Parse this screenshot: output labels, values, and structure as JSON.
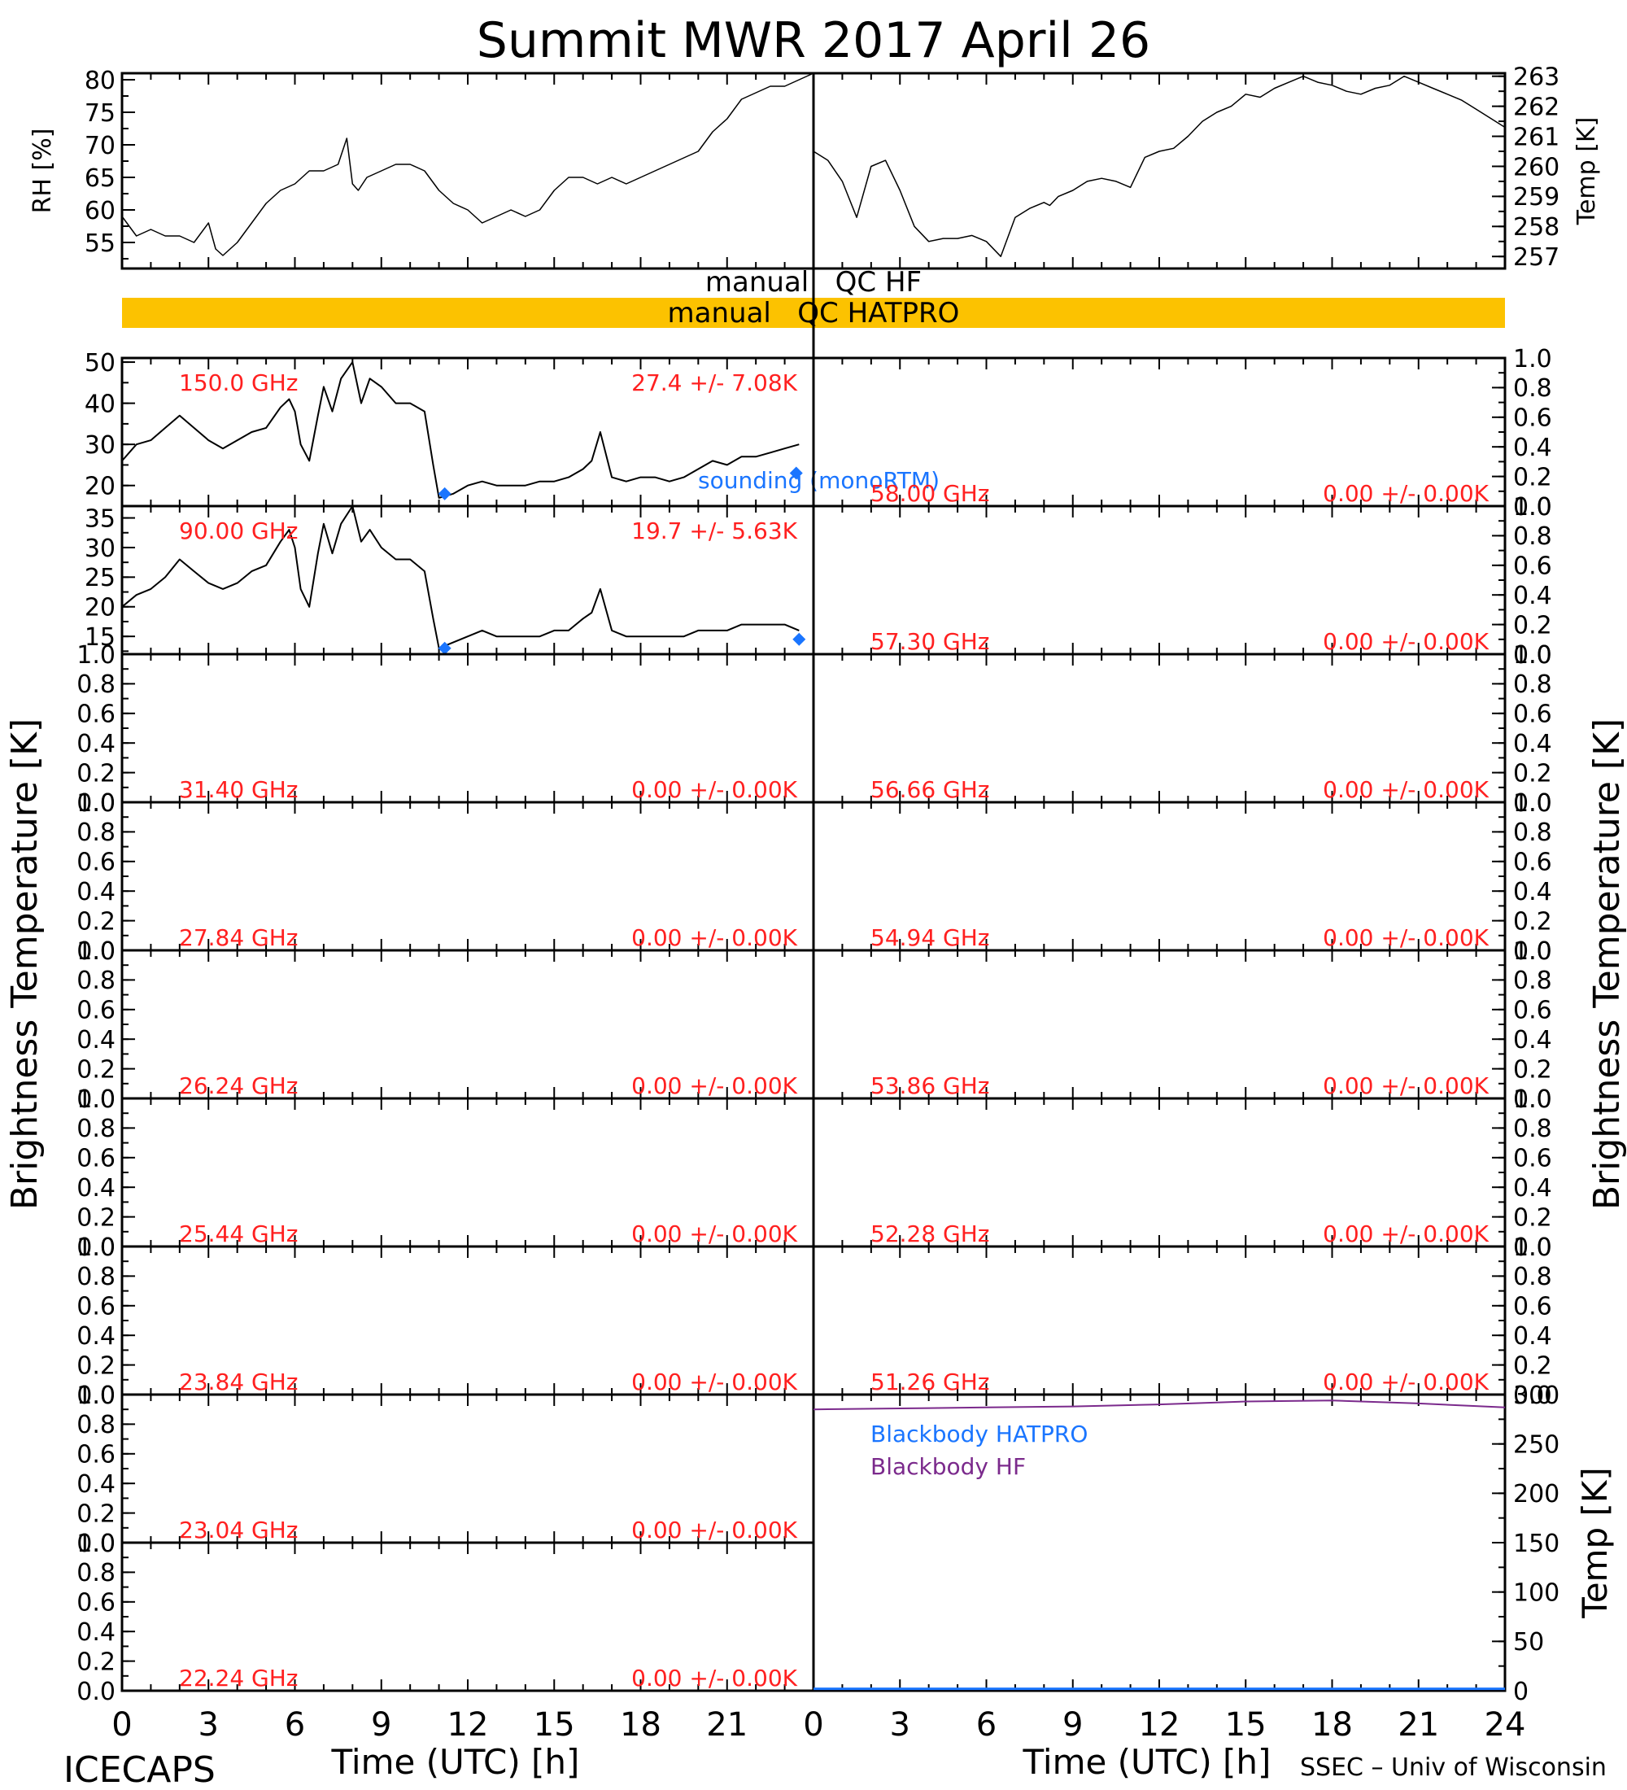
{
  "title": "Summit MWR 2017 April 26",
  "footer": {
    "left_credit": "ICECAPS",
    "right_credit": "SSEC – Univ of Wisconsin",
    "xlabel": "Time (UTC) [h]"
  },
  "colors": {
    "axis": "#000000",
    "channel_label": "#ff2020",
    "sounding": "#1a75ff",
    "blackbody_hatpro": "#1a75ff",
    "blackbody_hf": "#7b2a8c",
    "qc_bar": "#fcc200"
  },
  "qc": {
    "hf_label": "manual   QC HF",
    "hatpro_label": "manual   QC HATPRO",
    "hatpro_bar_on": true
  },
  "side_labels": {
    "brightness_left": "Brightness Temperature [K]",
    "brightness_right": "Brightness Temperature [K]",
    "sounding": "sounding (monoRTM)",
    "blackbody_hatpro": "Blackbody HATPRO",
    "blackbody_hf": "Blackbody HF"
  },
  "x_ticks": [
    "0",
    "3",
    "6",
    "9",
    "12",
    "15",
    "18",
    "21",
    "24"
  ],
  "x_ticks_left": [
    "0",
    "3",
    "6",
    "9",
    "12",
    "15",
    "18",
    "21"
  ],
  "chart_data": [
    {
      "id": "rh",
      "type": "line",
      "ylabel": "RH [%]",
      "xlim": [
        0,
        24
      ],
      "ylim": [
        51,
        81
      ],
      "yticks": [
        "55",
        "60",
        "65",
        "70",
        "75",
        "80"
      ],
      "x": [
        0,
        0.5,
        1,
        1.5,
        2,
        2.5,
        3,
        3.25,
        3.5,
        4,
        4.5,
        5,
        5.5,
        6,
        6.5,
        7,
        7.5,
        7.8,
        8,
        8.2,
        8.5,
        9,
        9.5,
        10,
        10.5,
        11,
        11.5,
        12,
        12.5,
        13,
        13.5,
        14,
        14.5,
        15,
        15.5,
        16,
        16.5,
        17,
        17.5,
        18,
        18.5,
        19,
        19.5,
        20,
        20.5,
        21,
        21.5,
        22,
        22.5,
        23,
        23.5,
        24
      ],
      "y": [
        59,
        56,
        57,
        56,
        56,
        55,
        58,
        54,
        53,
        55,
        58,
        61,
        63,
        64,
        66,
        66,
        67,
        71,
        64,
        63,
        65,
        66,
        67,
        67,
        66,
        63,
        61,
        60,
        58,
        59,
        60,
        59,
        60,
        63,
        65,
        65,
        64,
        65,
        64,
        65,
        66,
        67,
        68,
        69,
        72,
        74,
        77,
        78,
        79,
        79,
        80,
        81
      ]
    },
    {
      "id": "temp",
      "type": "line",
      "ylabel": "Temp [K]",
      "xlim": [
        0,
        24
      ],
      "ylim": [
        256.6,
        263.1
      ],
      "yticks": [
        "257",
        "258",
        "259",
        "260",
        "261",
        "262",
        "263"
      ],
      "x": [
        0,
        0.5,
        1,
        1.5,
        2,
        2.5,
        3,
        3.5,
        4,
        4.5,
        5,
        5.5,
        6,
        6.5,
        7,
        7.5,
        8,
        8.2,
        8.5,
        9,
        9.5,
        10,
        10.5,
        11,
        11.5,
        12,
        12.5,
        13,
        13.5,
        14,
        14.5,
        15,
        15.5,
        16,
        16.5,
        17,
        17.5,
        18,
        18.5,
        19,
        19.5,
        20,
        20.5,
        21,
        21.5,
        22,
        22.5,
        23,
        23.5,
        24
      ],
      "y": [
        260.5,
        260.2,
        259.5,
        258.3,
        260.0,
        260.2,
        259.2,
        258.0,
        257.5,
        257.6,
        257.6,
        257.7,
        257.5,
        257.0,
        258.3,
        258.6,
        258.8,
        258.7,
        259.0,
        259.2,
        259.5,
        259.6,
        259.5,
        259.3,
        260.3,
        260.5,
        260.6,
        261.0,
        261.5,
        261.8,
        262.0,
        262.4,
        262.3,
        262.6,
        262.8,
        263.0,
        262.8,
        262.7,
        262.5,
        262.4,
        262.6,
        262.7,
        263.0,
        262.8,
        262.6,
        262.4,
        262.2,
        261.9,
        261.6,
        261.3
      ]
    },
    {
      "id": "tb150",
      "type": "line",
      "channel_label": "150.0 GHz",
      "stats_label": "27.4 +/-  7.08K",
      "xlim": [
        0,
        24
      ],
      "ylim": [
        15,
        51
      ],
      "yticks": [
        "20",
        "30",
        "40",
        "50"
      ],
      "x": [
        0,
        0.5,
        1,
        1.5,
        2,
        2.5,
        3,
        3.5,
        4,
        4.5,
        5,
        5.5,
        5.8,
        6,
        6.2,
        6.5,
        6.8,
        7,
        7.3,
        7.6,
        8,
        8.3,
        8.6,
        9,
        9.5,
        10,
        10.5,
        10.8,
        11,
        11.5,
        12,
        12.5,
        13,
        13.5,
        14,
        14.5,
        15,
        15.5,
        16,
        16.3,
        16.6,
        17,
        17.5,
        18,
        18.5,
        19,
        19.5,
        20,
        20.5,
        21,
        21.5,
        22,
        22.5,
        23,
        23.5
      ],
      "y": [
        26,
        30,
        31,
        34,
        37,
        34,
        31,
        29,
        31,
        33,
        34,
        39,
        41,
        38,
        30,
        26,
        37,
        44,
        38,
        46,
        50,
        40,
        46,
        44,
        40,
        40,
        38,
        25,
        17,
        18,
        20,
        21,
        20,
        20,
        20,
        21,
        21,
        22,
        24,
        26,
        33,
        22,
        21,
        22,
        22,
        21,
        22,
        24,
        26,
        25,
        27,
        27,
        28,
        29,
        30
      ],
      "sounding": {
        "x": [
          11.2,
          23.4
        ],
        "y": [
          18,
          23
        ]
      }
    },
    {
      "id": "tb90",
      "type": "line",
      "channel_label": "90.00 GHz",
      "stats_label": "19.7 +/-  5.63K",
      "xlim": [
        0,
        24
      ],
      "ylim": [
        12,
        37
      ],
      "yticks": [
        "15",
        "20",
        "25",
        "30",
        "35"
      ],
      "x": [
        0,
        0.5,
        1,
        1.5,
        2,
        2.5,
        3,
        3.5,
        4,
        4.5,
        5,
        5.5,
        5.8,
        6,
        6.2,
        6.5,
        6.8,
        7,
        7.3,
        7.6,
        8,
        8.3,
        8.6,
        9,
        9.5,
        10,
        10.5,
        10.8,
        11,
        11.5,
        12,
        12.5,
        13,
        13.5,
        14,
        14.5,
        15,
        15.5,
        16,
        16.3,
        16.6,
        17,
        17.5,
        18,
        18.5,
        19,
        19.5,
        20,
        20.5,
        21,
        21.5,
        22,
        22.5,
        23,
        23.5
      ],
      "y": [
        20,
        22,
        23,
        25,
        28,
        26,
        24,
        23,
        24,
        26,
        27,
        31,
        33,
        30,
        23,
        20,
        29,
        34,
        29,
        34,
        37,
        31,
        33,
        30,
        28,
        28,
        26,
        18,
        13,
        14,
        15,
        16,
        15,
        15,
        15,
        15,
        16,
        16,
        18,
        19,
        23,
        16,
        15,
        15,
        15,
        15,
        15,
        16,
        16,
        16,
        17,
        17,
        17,
        17,
        16
      ],
      "sounding": {
        "x": [
          11.2,
          23.5
        ],
        "y": [
          13,
          14.5
        ]
      }
    },
    {
      "id": "blackbody",
      "type": "line",
      "ylabel": "Temp [K]",
      "xlim": [
        0,
        24
      ],
      "ylim": [
        0,
        300
      ],
      "yticks": [
        "0",
        "50",
        "100",
        "150",
        "200",
        "250",
        "300"
      ],
      "series": [
        {
          "name": "Blackbody HATPRO",
          "x": [
            0,
            24
          ],
          "y": [
            2,
            2
          ]
        },
        {
          "name": "Blackbody HF",
          "x": [
            0,
            3,
            6,
            9,
            12,
            15,
            18,
            21,
            24
          ],
          "y": [
            285,
            286,
            287,
            288,
            290,
            293,
            294,
            291,
            287
          ]
        }
      ]
    }
  ],
  "empty_panels": {
    "left": [
      {
        "channel_label": "31.40 GHz",
        "stats_label": "0.00 +/-  0.00K"
      },
      {
        "channel_label": "27.84 GHz",
        "stats_label": "0.00 +/-  0.00K"
      },
      {
        "channel_label": "26.24 GHz",
        "stats_label": "0.00 +/-  0.00K"
      },
      {
        "channel_label": "25.44 GHz",
        "stats_label": "0.00 +/-  0.00K"
      },
      {
        "channel_label": "23.84 GHz",
        "stats_label": "0.00 +/-  0.00K"
      },
      {
        "channel_label": "23.04 GHz",
        "stats_label": "0.00 +/-  0.00K"
      },
      {
        "channel_label": "22.24 GHz",
        "stats_label": "0.00 +/-  0.00K"
      }
    ],
    "right": [
      {
        "channel_label": "58.00 GHz",
        "stats_label": "0.00 +/-  0.00K"
      },
      {
        "channel_label": "57.30 GHz",
        "stats_label": "0.00 +/-  0.00K"
      },
      {
        "channel_label": "56.66 GHz",
        "stats_label": "0.00 +/-  0.00K"
      },
      {
        "channel_label": "54.94 GHz",
        "stats_label": "0.00 +/-  0.00K"
      },
      {
        "channel_label": "53.86 GHz",
        "stats_label": "0.00 +/-  0.00K"
      },
      {
        "channel_label": "52.28 GHz",
        "stats_label": "0.00 +/-  0.00K"
      },
      {
        "channel_label": "51.26 GHz",
        "stats_label": "0.00 +/-  0.00K"
      }
    ],
    "yticks": [
      "0.0",
      "0.2",
      "0.4",
      "0.6",
      "0.8",
      "1.0"
    ]
  }
}
